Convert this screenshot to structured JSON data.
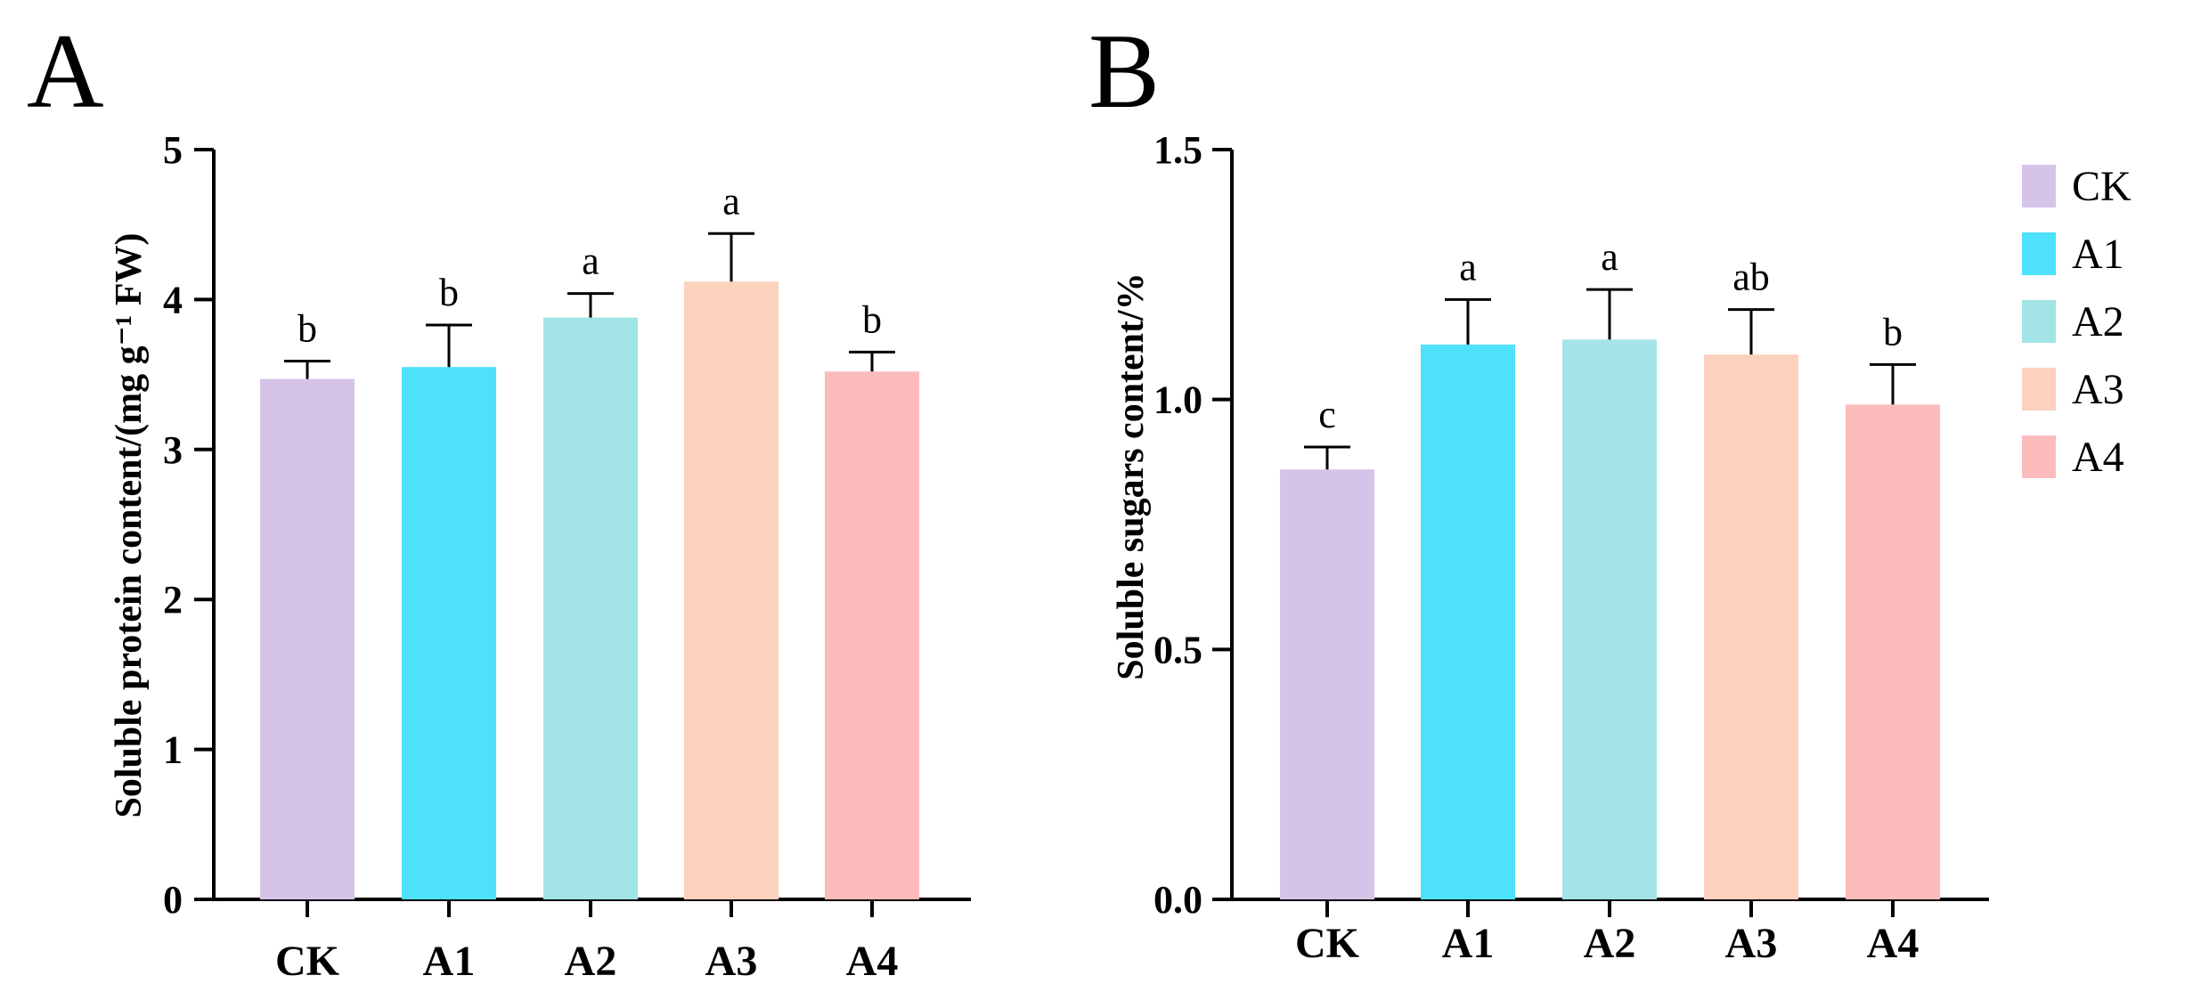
{
  "colors": {
    "CK": "#d6c4e8",
    "A1": "#4de1fb",
    "A2": "#a3e4e6",
    "A3": "#fcd1bd",
    "A4": "#fcbcbd"
  },
  "legend": {
    "items": [
      {
        "label": "CK",
        "color": "#d6c4e8"
      },
      {
        "label": "A1",
        "color": "#4de1fb"
      },
      {
        "label": "A2",
        "color": "#a3e4e6"
      },
      {
        "label": "A3",
        "color": "#fcd1bd"
      },
      {
        "label": "A4",
        "color": "#fcbcbd"
      }
    ]
  },
  "chart_data": [
    {
      "type": "bar",
      "panel": "A",
      "title": "",
      "xlabel": "",
      "ylabel": "Soluble protein content/(mg g⁻¹ FW)",
      "categories": [
        "CK",
        "A1",
        "A2",
        "A3",
        "A4"
      ],
      "values": [
        3.47,
        3.55,
        3.88,
        4.12,
        3.52
      ],
      "errors": [
        0.12,
        0.28,
        0.16,
        0.32,
        0.13
      ],
      "significance": [
        "b",
        "b",
        "a",
        "a",
        "b"
      ],
      "ylim": [
        0,
        5
      ],
      "yticks": [
        0,
        1,
        2,
        3,
        4,
        5
      ],
      "ytick_labels": [
        "0",
        "1",
        "2",
        "3",
        "4",
        "5"
      ]
    },
    {
      "type": "bar",
      "panel": "B",
      "title": "",
      "xlabel": "",
      "ylabel": "Soluble sugars content/%",
      "categories": [
        "CK",
        "A1",
        "A2",
        "A3",
        "A4"
      ],
      "values": [
        0.86,
        1.11,
        1.12,
        1.09,
        0.99
      ],
      "errors": [
        0.045,
        0.09,
        0.1,
        0.09,
        0.08
      ],
      "significance": [
        "c",
        "a",
        "a",
        "ab",
        "b"
      ],
      "ylim": [
        0,
        1.5
      ],
      "yticks": [
        0,
        0.5,
        1.0,
        1.5
      ],
      "ytick_labels": [
        "0.0",
        "0.5",
        "1.0",
        "1.5"
      ]
    }
  ]
}
